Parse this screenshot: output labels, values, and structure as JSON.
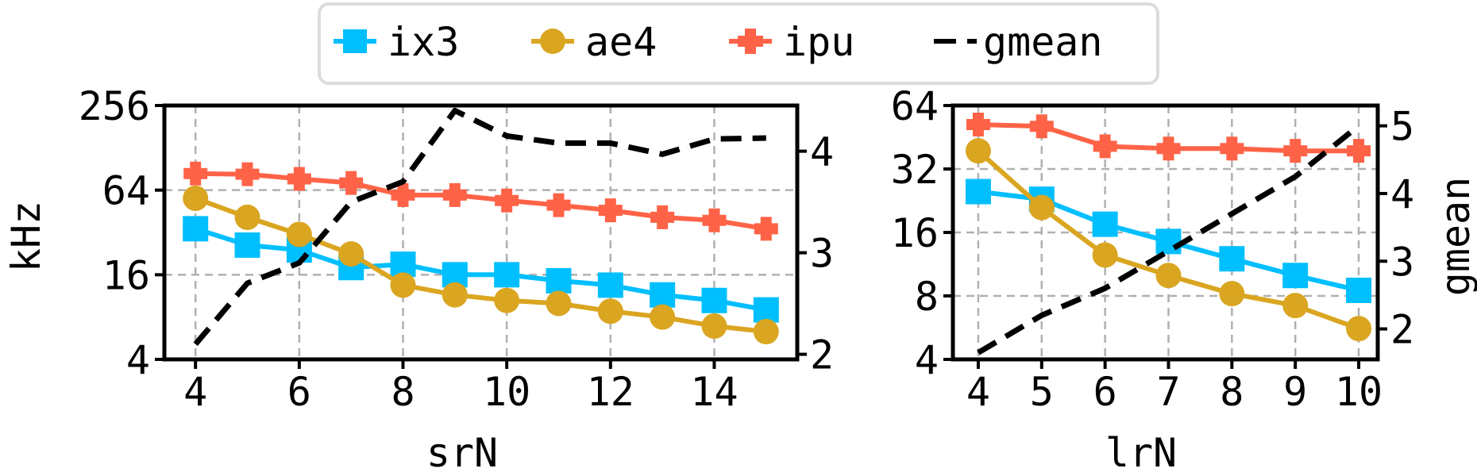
{
  "legend": {
    "items": [
      {
        "label": "ix3",
        "color": "#00BFFF",
        "marker": "square"
      },
      {
        "label": "ae4",
        "color": "#DAA520",
        "marker": "circle"
      },
      {
        "label": "ipu",
        "color": "#FF6347",
        "marker": "plus"
      },
      {
        "label": "gmean",
        "color": "#000000",
        "marker": "dashed-line"
      }
    ]
  },
  "chart_data": [
    {
      "type": "line",
      "xlabel": "srN",
      "ylabel": "kHz",
      "y2label": "",
      "yscale": "log2",
      "x": [
        4,
        5,
        6,
        7,
        8,
        9,
        10,
        11,
        12,
        13,
        14,
        15
      ],
      "xticks": [
        "4",
        "6",
        "8",
        "10",
        "12",
        "14"
      ],
      "yticks": [
        "4",
        "16",
        "64",
        "256"
      ],
      "y2ticks": [
        "2",
        "3",
        "4"
      ],
      "ylim": [
        4,
        256
      ],
      "y2lim": [
        1.95,
        4.45
      ],
      "grid": true,
      "series": [
        {
          "name": "ix3",
          "values": [
            34,
            26,
            24,
            18,
            19,
            16,
            16,
            14.5,
            13.5,
            11.5,
            10.5,
            9
          ]
        },
        {
          "name": "ae4",
          "values": [
            56,
            41,
            31,
            22.5,
            13.5,
            11.5,
            10.5,
            10,
            8.8,
            8,
            6.9,
            6.3
          ]
        },
        {
          "name": "ipu",
          "values": [
            84,
            83,
            77,
            72,
            59,
            59,
            54,
            50,
            46,
            41,
            39,
            34
          ]
        },
        {
          "name": "gmean",
          "axis": "right",
          "values": [
            2.1,
            2.7,
            2.9,
            3.5,
            3.7,
            4.4,
            4.15,
            4.08,
            4.08,
            3.97,
            4.12,
            4.13
          ]
        }
      ]
    },
    {
      "type": "line",
      "xlabel": "lrN",
      "ylabel": "",
      "y2label": "gmean",
      "yscale": "log2",
      "x": [
        4,
        5,
        6,
        7,
        8,
        9,
        10
      ],
      "xticks": [
        "4",
        "5",
        "6",
        "7",
        "8",
        "9",
        "10"
      ],
      "yticks": [
        "4",
        "8",
        "16",
        "32",
        "64"
      ],
      "y2ticks": [
        "2",
        "3",
        "4",
        "5"
      ],
      "ylim": [
        4,
        64
      ],
      "y2lim": [
        1.55,
        5.3
      ],
      "grid": true,
      "series": [
        {
          "name": "ix3",
          "values": [
            25,
            23,
            17.5,
            14.5,
            12,
            10,
            8.5
          ]
        },
        {
          "name": "ae4",
          "values": [
            39,
            21,
            12.5,
            10,
            8.2,
            7.2,
            5.6
          ]
        },
        {
          "name": "ipu",
          "values": [
            52,
            51,
            41,
            40,
            40,
            39,
            39
          ]
        },
        {
          "name": "gmean",
          "axis": "right",
          "values": [
            1.65,
            2.2,
            2.6,
            3.15,
            3.7,
            4.25,
            5.0
          ]
        }
      ]
    }
  ]
}
